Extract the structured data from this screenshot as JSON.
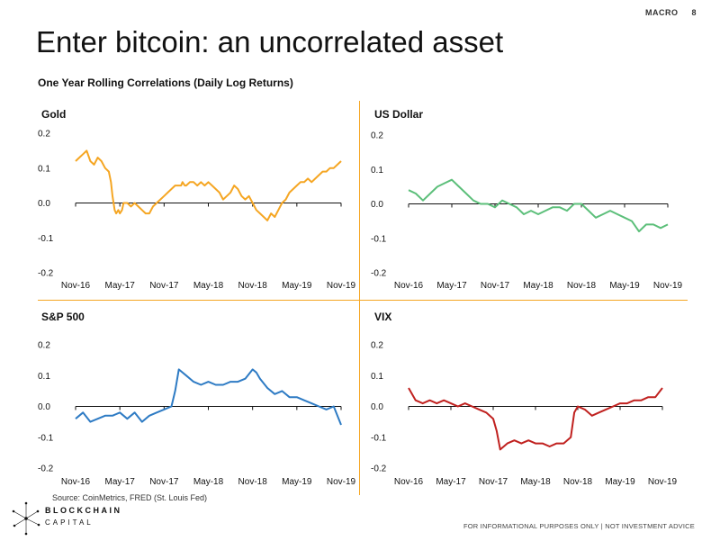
{
  "header": {
    "section": "MACRO",
    "page": "8"
  },
  "title": "Enter bitcoin: an uncorrelated asset",
  "subtitle": "One Year Rolling Correlations (Daily Log Returns)",
  "source": "Source: CoinMetrics, FRED (St. Louis Fed)",
  "logo": {
    "line1": "BLOCKCHAIN",
    "line2": "CAPITAL"
  },
  "disclaimer": "FOR INFORMATIONAL PURPOSES ONLY | NOT INVESTMENT ADVICE",
  "chart_data": [
    {
      "type": "line",
      "title": "Gold",
      "color": "#f5a623",
      "x_ticks": [
        "Nov-16",
        "May-17",
        "Nov-17",
        "May-18",
        "Nov-18",
        "May-19",
        "Nov-19"
      ],
      "y_ticks": [
        "0.2",
        "0.1",
        "0.0",
        "-0.1",
        "-0.2"
      ],
      "ylim": [
        -0.2,
        0.2
      ],
      "x": [
        0,
        0.5,
        1,
        1.5,
        2,
        2.5,
        3,
        3.5,
        4,
        4.5,
        4.8,
        5,
        5.3,
        5.5,
        5.8,
        6,
        6.3,
        6.5,
        7,
        7.5,
        8,
        8.5,
        9,
        9.5,
        10,
        10.5,
        11,
        11.5,
        12,
        12.5,
        13,
        13.5,
        14,
        14.3,
        14.5,
        14.8,
        15,
        15.5,
        16,
        16.5,
        17,
        17.5,
        18,
        18.5,
        19,
        19.5,
        20,
        20.5,
        21,
        21.5,
        22,
        22.5,
        23,
        23.5,
        24,
        24.5,
        25,
        25.5,
        26,
        26.5,
        27,
        27.5,
        28,
        28.5,
        29,
        29.5,
        30,
        30.5,
        31,
        31.5,
        32,
        32.5,
        33,
        33.5,
        34,
        34.5,
        35,
        35.5,
        36
      ],
      "y": [
        0.12,
        0.13,
        0.14,
        0.15,
        0.12,
        0.11,
        0.13,
        0.12,
        0.1,
        0.09,
        0.06,
        0.02,
        -0.02,
        -0.03,
        -0.02,
        -0.03,
        -0.02,
        0.0,
        0.0,
        -0.01,
        0.0,
        -0.01,
        -0.02,
        -0.03,
        -0.03,
        -0.01,
        0.0,
        0.01,
        0.02,
        0.03,
        0.04,
        0.05,
        0.05,
        0.05,
        0.06,
        0.05,
        0.05,
        0.06,
        0.06,
        0.05,
        0.06,
        0.05,
        0.06,
        0.05,
        0.04,
        0.03,
        0.01,
        0.02,
        0.03,
        0.05,
        0.04,
        0.02,
        0.01,
        0.02,
        0.0,
        -0.02,
        -0.03,
        -0.04,
        -0.05,
        -0.03,
        -0.04,
        -0.02,
        0.0,
        0.01,
        0.03,
        0.04,
        0.05,
        0.06,
        0.06,
        0.07,
        0.06,
        0.07,
        0.08,
        0.09,
        0.09,
        0.1,
        0.1,
        0.11,
        0.12
      ]
    },
    {
      "type": "line",
      "title": "US Dollar",
      "color": "#5cbf7a",
      "x_ticks": [
        "Nov-16",
        "May-17",
        "Nov-17",
        "May-18",
        "Nov-18",
        "May-19",
        "Nov-19"
      ],
      "y_ticks": [
        "0.2",
        "0.1",
        "0.0",
        "-0.1",
        "-0.2"
      ],
      "ylim": [
        -0.2,
        0.2
      ],
      "x": [
        0,
        1,
        2,
        3,
        4,
        5,
        6,
        7,
        8,
        9,
        10,
        11,
        12,
        13,
        14,
        15,
        16,
        17,
        18,
        19,
        20,
        21,
        22,
        23,
        24,
        25,
        26,
        27,
        28,
        29,
        30,
        31,
        32,
        33,
        34,
        35,
        36
      ],
      "y": [
        0.04,
        0.03,
        0.01,
        0.03,
        0.05,
        0.06,
        0.07,
        0.05,
        0.03,
        0.01,
        0.0,
        0.0,
        -0.01,
        0.01,
        0.0,
        -0.01,
        -0.03,
        -0.02,
        -0.03,
        -0.02,
        -0.01,
        -0.01,
        -0.02,
        0.0,
        0.0,
        -0.02,
        -0.04,
        -0.03,
        -0.02,
        -0.03,
        -0.04,
        -0.05,
        -0.08,
        -0.06,
        -0.06,
        -0.07,
        -0.06
      ]
    },
    {
      "type": "line",
      "title": "S&P 500",
      "color": "#2e7bc4",
      "x_ticks": [
        "Nov-16",
        "May-17",
        "Nov-17",
        "May-18",
        "Nov-18",
        "May-19",
        "Nov-19"
      ],
      "y_ticks": [
        "0.2",
        "0.1",
        "0.0",
        "-0.1",
        "-0.2"
      ],
      "ylim": [
        -0.2,
        0.2
      ],
      "x": [
        0,
        1,
        2,
        3,
        4,
        5,
        6,
        7,
        8,
        9,
        10,
        11,
        12,
        13,
        13.5,
        14,
        15,
        16,
        17,
        18,
        19,
        20,
        21,
        22,
        23,
        24,
        24.5,
        25,
        26,
        27,
        28,
        29,
        30,
        31,
        32,
        33,
        34,
        35,
        36
      ],
      "y": [
        -0.04,
        -0.02,
        -0.05,
        -0.04,
        -0.03,
        -0.03,
        -0.02,
        -0.04,
        -0.02,
        -0.05,
        -0.03,
        -0.02,
        -0.01,
        0.0,
        0.05,
        0.12,
        0.1,
        0.08,
        0.07,
        0.08,
        0.07,
        0.07,
        0.08,
        0.08,
        0.09,
        0.12,
        0.11,
        0.09,
        0.06,
        0.04,
        0.05,
        0.03,
        0.03,
        0.02,
        0.01,
        0.0,
        -0.01,
        0.0,
        -0.06
      ]
    },
    {
      "type": "line",
      "title": "VIX",
      "color": "#c0211f",
      "x_ticks": [
        "Nov-16",
        "May-17",
        "Nov-17",
        "May-18",
        "Nov-18",
        "May-19",
        "Nov-19"
      ],
      "y_ticks": [
        "0.2",
        "0.1",
        "0.0",
        "-0.1",
        "-0.2"
      ],
      "ylim": [
        -0.2,
        0.2
      ],
      "x": [
        0,
        1,
        2,
        3,
        4,
        5,
        6,
        7,
        8,
        9,
        10,
        11,
        12,
        12.5,
        13,
        14,
        15,
        16,
        17,
        18,
        19,
        20,
        21,
        22,
        23,
        23.5,
        24,
        25,
        26,
        27,
        28,
        29,
        30,
        31,
        32,
        33,
        34,
        35,
        36
      ],
      "y": [
        0.06,
        0.02,
        0.01,
        0.02,
        0.01,
        0.02,
        0.01,
        0.0,
        0.01,
        0.0,
        -0.01,
        -0.02,
        -0.04,
        -0.08,
        -0.14,
        -0.12,
        -0.11,
        -0.12,
        -0.11,
        -0.12,
        -0.12,
        -0.13,
        -0.12,
        -0.12,
        -0.1,
        -0.02,
        0.0,
        -0.01,
        -0.03,
        -0.02,
        -0.01,
        0.0,
        0.01,
        0.01,
        0.02,
        0.02,
        0.03,
        0.03,
        0.06
      ]
    }
  ]
}
